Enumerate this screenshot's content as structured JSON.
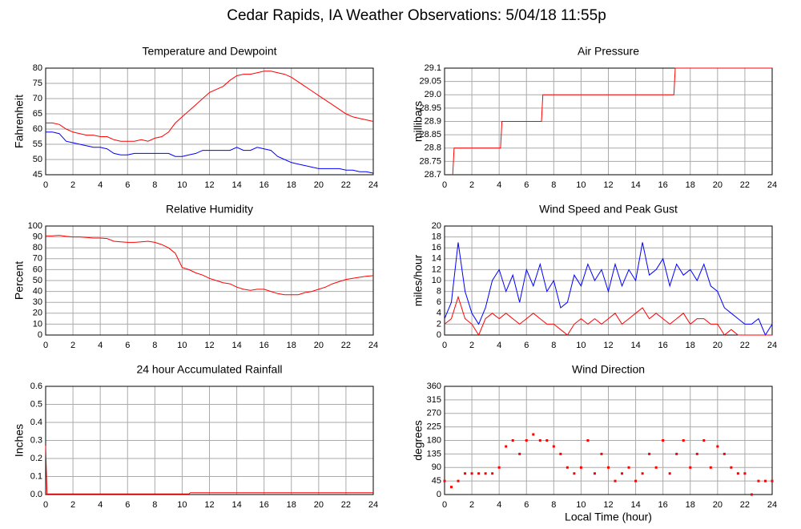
{
  "title": "Cedar Rapids, IA Weather Observations: 5/04/18 11:55p",
  "chart_data": [
    {
      "type": "line",
      "title": "Temperature and Dewpoint",
      "ylabel": "Fahrenheit",
      "x": [
        0,
        0.5,
        1,
        1.5,
        2,
        2.5,
        3,
        3.5,
        4,
        4.5,
        5,
        5.5,
        6,
        6.5,
        7,
        7.5,
        8,
        8.5,
        9,
        9.5,
        10,
        10.5,
        11,
        11.5,
        12,
        12.5,
        13,
        13.5,
        14,
        14.5,
        15,
        15.5,
        16,
        16.5,
        17,
        17.5,
        18,
        18.5,
        19,
        19.5,
        20,
        20.5,
        21,
        21.5,
        22,
        22.5,
        23,
        23.5,
        24
      ],
      "series": [
        {
          "color": "#ff0000",
          "values": [
            62,
            62,
            61.5,
            60,
            59,
            58.5,
            58,
            58,
            57.5,
            57.5,
            56.5,
            56,
            56,
            56,
            56.5,
            56,
            57,
            57.5,
            59,
            62,
            64,
            66,
            68,
            70,
            72,
            73,
            74,
            76,
            77.5,
            78,
            78,
            78.5,
            79,
            79,
            78.5,
            78,
            77,
            75.5,
            74,
            72.5,
            71,
            69.5,
            68,
            66.5,
            65,
            64,
            63.5,
            63,
            62.5
          ]
        },
        {
          "color": "#0000ff",
          "values": [
            59,
            59,
            58.5,
            56,
            55.5,
            55,
            54.5,
            54,
            54,
            53.5,
            52,
            51.5,
            51.5,
            52,
            52,
            52,
            52,
            52,
            52,
            51,
            51,
            51.5,
            52,
            53,
            53,
            53,
            53,
            53,
            54,
            53,
            53,
            54,
            53.5,
            53,
            51,
            50,
            49,
            48.5,
            48,
            47.5,
            47,
            47,
            47,
            47,
            46.5,
            46.5,
            46,
            46,
            45.5
          ]
        }
      ],
      "xlim": [
        0,
        24
      ],
      "xticks": [
        0,
        2,
        4,
        6,
        8,
        10,
        12,
        14,
        16,
        18,
        20,
        22,
        24
      ],
      "ylim": [
        45,
        80
      ],
      "yticks": [
        45,
        50,
        55,
        60,
        65,
        70,
        75,
        80
      ],
      "grid": true
    },
    {
      "type": "line",
      "title": "Air Pressure",
      "ylabel": "millibars",
      "x": [
        0.6,
        0.7,
        4.1,
        4.2,
        7.1,
        7.2,
        16.8,
        16.9,
        24
      ],
      "color": "#ff0000",
      "values": [
        28.7,
        28.8,
        28.8,
        28.9,
        28.9,
        29,
        29,
        29.1,
        29.1
      ],
      "xlim": [
        0,
        24
      ],
      "xticks": [
        0,
        2,
        4,
        6,
        8,
        10,
        12,
        14,
        16,
        18,
        20,
        22,
        24
      ],
      "ylim": [
        28.7,
        29.1
      ],
      "yticks": [
        28.7,
        28.75,
        28.8,
        28.85,
        28.9,
        28.95,
        {
          "value": 29,
          "label": "29.0"
        },
        29.05,
        29.1
      ],
      "grid": true
    },
    {
      "type": "line",
      "title": "Relative Humidity",
      "ylabel": "Percent",
      "x": [
        0,
        0.5,
        1,
        1.5,
        2,
        2.5,
        3,
        3.5,
        4,
        4.5,
        5,
        5.5,
        6,
        6.5,
        7,
        7.5,
        8,
        8.5,
        9,
        9.5,
        10,
        10.5,
        11,
        11.5,
        12,
        12.5,
        13,
        13.5,
        14,
        14.5,
        15,
        15.5,
        16,
        16.5,
        17,
        17.5,
        18,
        18.5,
        19,
        19.5,
        20,
        20.5,
        21,
        21.5,
        22,
        22.5,
        23,
        23.5,
        24
      ],
      "color": "#ff0000",
      "values": [
        91,
        91,
        91.5,
        90.5,
        90,
        90,
        89.5,
        89,
        89,
        88.5,
        86,
        85.5,
        85,
        85,
        85.5,
        86,
        85,
        83,
        80,
        75,
        62,
        60,
        57,
        55,
        52,
        50,
        48,
        47,
        44,
        42,
        41,
        42,
        42,
        40,
        38,
        37,
        37,
        37,
        39,
        40,
        42,
        44,
        47,
        49,
        51,
        52,
        53,
        54,
        54.5
      ],
      "xlim": [
        0,
        24
      ],
      "xticks": [
        0,
        2,
        4,
        6,
        8,
        10,
        12,
        14,
        16,
        18,
        20,
        22,
        24
      ],
      "ylim": [
        0,
        100
      ],
      "yticks": [
        0,
        10,
        20,
        30,
        40,
        50,
        60,
        70,
        80,
        90,
        100
      ],
      "grid": true
    },
    {
      "type": "line",
      "title": "Wind Speed and Peak Gust",
      "ylabel": "miles/hour",
      "x": [
        0,
        0.5,
        1,
        1.5,
        2,
        2.5,
        3,
        3.5,
        4,
        4.5,
        5,
        5.5,
        6,
        6.5,
        7,
        7.5,
        8,
        8.5,
        9,
        9.5,
        10,
        10.5,
        11,
        11.5,
        12,
        12.5,
        13,
        13.5,
        14,
        14.5,
        15,
        15.5,
        16,
        16.5,
        17,
        17.5,
        18,
        18.5,
        19,
        19.5,
        20,
        20.5,
        21,
        21.5,
        22,
        22.5,
        23,
        23.5,
        24
      ],
      "series": [
        {
          "color": "#0000ff",
          "values": [
            3,
            6,
            17,
            8,
            4,
            2,
            5,
            10,
            12,
            8,
            11,
            6,
            12,
            9,
            13,
            8,
            10,
            5,
            6,
            11,
            9,
            13,
            10,
            12,
            8,
            13,
            9,
            12,
            10,
            17,
            11,
            12,
            14,
            9,
            13,
            11,
            12,
            10,
            13,
            9,
            8,
            5,
            4,
            3,
            2,
            2,
            3,
            0,
            2
          ]
        },
        {
          "color": "#ff0000",
          "values": [
            2,
            3,
            7,
            3,
            2,
            0,
            3,
            4,
            3,
            4,
            3,
            2,
            3,
            4,
            3,
            2,
            2,
            1,
            0,
            2,
            3,
            2,
            3,
            2,
            3,
            4,
            2,
            3,
            4,
            5,
            3,
            4,
            3,
            2,
            3,
            4,
            2,
            3,
            3,
            2,
            2,
            0,
            1,
            0,
            0,
            0,
            0,
            0,
            0
          ]
        }
      ],
      "xlim": [
        0,
        24
      ],
      "xticks": [
        0,
        2,
        4,
        6,
        8,
        10,
        12,
        14,
        16,
        18,
        20,
        22,
        24
      ],
      "ylim": [
        0,
        20
      ],
      "yticks": [
        0,
        2,
        4,
        6,
        8,
        10,
        12,
        14,
        16,
        18,
        20
      ],
      "grid": true
    },
    {
      "type": "line",
      "title": "24 hour Accumulated Rainfall",
      "ylabel": "Inches",
      "x": [
        0,
        0.1,
        10.5,
        10.6,
        24
      ],
      "color": "#ff0000",
      "values": [
        0.27,
        0.003,
        0.003,
        0.01,
        0.01
      ],
      "xlim": [
        0,
        24
      ],
      "xticks": [
        0,
        2,
        4,
        6,
        8,
        10,
        12,
        14,
        16,
        18,
        20,
        22,
        24
      ],
      "ylim": [
        0,
        0.6
      ],
      "yticks": [
        {
          "value": 0,
          "label": "0.0"
        },
        0.1,
        0.2,
        0.3,
        0.4,
        0.5,
        0.6
      ],
      "grid": true
    },
    {
      "type": "scatter",
      "title": "Wind Direction",
      "ylabel": "degrees",
      "xlabel": "Local Time (hour)",
      "x": [
        0,
        0.5,
        1,
        1.5,
        2,
        2.5,
        3,
        3.5,
        4,
        4.5,
        5,
        5.5,
        6,
        6.5,
        7,
        7.5,
        8,
        8.5,
        9,
        9.5,
        10,
        10.5,
        11,
        11.5,
        12,
        12.5,
        13,
        13.5,
        14,
        14.5,
        15,
        15.5,
        16,
        16.5,
        17,
        17.5,
        18,
        18.5,
        19,
        19.5,
        20,
        20.5,
        21,
        21.5,
        22,
        22.5,
        23,
        23.5,
        24
      ],
      "color": "#ff0000",
      "values": [
        45,
        25,
        45,
        70,
        70,
        70,
        70,
        70,
        90,
        160,
        180,
        135,
        180,
        200,
        180,
        180,
        160,
        135,
        90,
        70,
        90,
        180,
        70,
        135,
        90,
        45,
        70,
        90,
        45,
        70,
        135,
        90,
        180,
        70,
        135,
        180,
        90,
        135,
        180,
        90,
        160,
        135,
        90,
        70,
        70,
        0,
        45,
        45,
        45
      ],
      "xlim": [
        0,
        24
      ],
      "xticks": [
        0,
        2,
        4,
        6,
        8,
        10,
        12,
        14,
        16,
        18,
        20,
        22,
        24
      ],
      "ylim": [
        0,
        360
      ],
      "yticks": [
        0,
        45,
        90,
        135,
        180,
        225,
        270,
        315,
        360
      ],
      "grid": true
    }
  ]
}
